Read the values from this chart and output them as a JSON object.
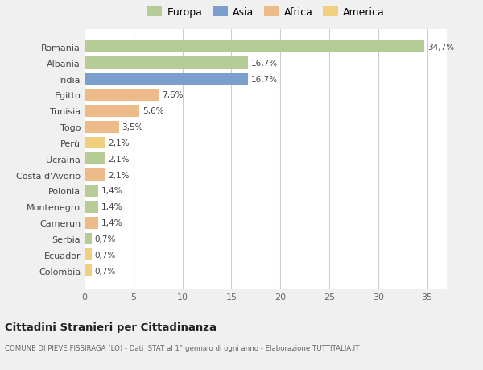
{
  "countries": [
    "Romania",
    "Albania",
    "India",
    "Egitto",
    "Tunisia",
    "Togo",
    "Perù",
    "Ucraina",
    "Costa d'Avorio",
    "Polonia",
    "Montenegro",
    "Camerun",
    "Serbia",
    "Ecuador",
    "Colombia"
  ],
  "values": [
    34.7,
    16.7,
    16.7,
    7.6,
    5.6,
    3.5,
    2.1,
    2.1,
    2.1,
    1.4,
    1.4,
    1.4,
    0.7,
    0.7,
    0.7
  ],
  "labels": [
    "34,7%",
    "16,7%",
    "16,7%",
    "7,6%",
    "5,6%",
    "3,5%",
    "2,1%",
    "2,1%",
    "2,1%",
    "1,4%",
    "1,4%",
    "1,4%",
    "0,7%",
    "0,7%",
    "0,7%"
  ],
  "colors": [
    "#b5cc96",
    "#b5cc96",
    "#7b9fcc",
    "#edbb8a",
    "#edbb8a",
    "#edbb8a",
    "#f0d080",
    "#b5cc96",
    "#edbb8a",
    "#b5cc96",
    "#b5cc96",
    "#edbb8a",
    "#b5cc96",
    "#f0d080",
    "#f0d080"
  ],
  "legend_labels": [
    "Europa",
    "Asia",
    "Africa",
    "America"
  ],
  "legend_colors": [
    "#b5cc96",
    "#7b9fcc",
    "#edbb8a",
    "#f0d080"
  ],
  "title": "Cittadini Stranieri per Cittadinanza",
  "subtitle": "COMUNE DI PIEVE FISSIRAGA (LO) - Dati ISTAT al 1° gennaio di ogni anno - Elaborazione TUTTITALIA.IT",
  "xlim": [
    0,
    37
  ],
  "xticks": [
    0,
    5,
    10,
    15,
    20,
    25,
    30,
    35
  ],
  "bg_color": "#f0f0f0",
  "plot_bg_color": "#ffffff"
}
